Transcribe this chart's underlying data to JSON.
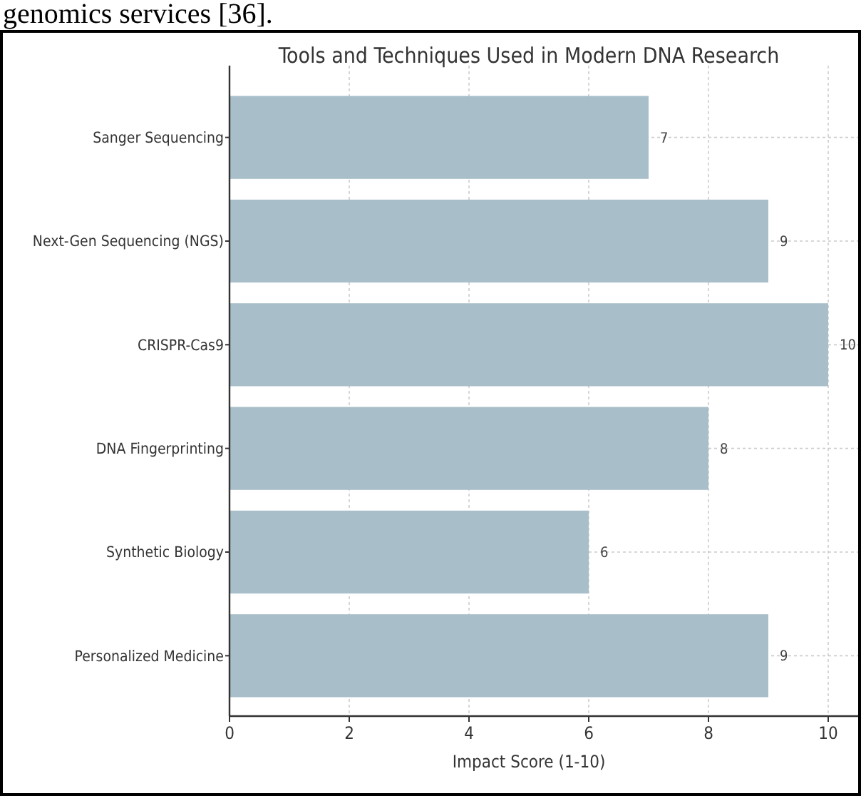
{
  "chart_data": {
    "type": "bar",
    "orientation": "horizontal",
    "title": "Tools and Techniques Used in Modern DNA Research",
    "xlabel": "Impact Score (1-10)",
    "categories": [
      "Sanger Sequencing",
      "Next-Gen Sequencing (NGS)",
      "CRISPR-Cas9",
      "DNA Fingerprinting",
      "Synthetic Biology",
      "Personalized Medicine"
    ],
    "values": [
      7,
      9,
      10,
      8,
      6,
      9
    ],
    "color": "#a8bfc9",
    "data_labels": true,
    "xlim": [
      0,
      10.5
    ],
    "xticks": [
      0,
      2,
      4,
      6,
      8,
      10
    ],
    "grid": true,
    "annotations": [
      "genomics services [36]."
    ]
  }
}
